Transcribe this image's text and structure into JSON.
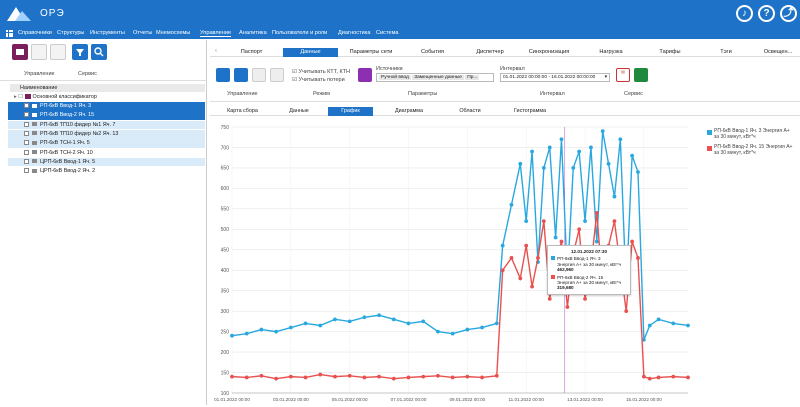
{
  "app": {
    "title": "ОРЭ"
  },
  "menu": [
    "Справочники",
    "Структуры",
    "Инструменты",
    "Отчеты",
    "Мнемосхемы",
    "Управление",
    "Аналитика",
    "Пользователи и роли",
    "Диагностика",
    "Система"
  ],
  "menu_active": 5,
  "left_panel": {
    "group1_label": "Управление",
    "group2_label": "Сервис",
    "tree_header": "Наименование",
    "root": "Основной классификатор",
    "items": [
      {
        "label": "РП-6кВ Ввод-1 Яч. 3",
        "state": "sel"
      },
      {
        "label": "РП-6кВ Ввод-2 Яч. 15",
        "state": "sel"
      },
      {
        "label": "РП-6кВ ТП10 фидер №1 Яч. 7",
        "state": "light"
      },
      {
        "label": "РП-6кВ ТП10 фидер №2 Яч. 13",
        "state": "light"
      },
      {
        "label": "РП-6кВ ТСН-1 Яч. 5",
        "state": "light"
      },
      {
        "label": "РП-6кВ ТСН-2 Яч. 10",
        "state": "none"
      },
      {
        "label": "ЦРП-6кВ Ввод-1 Яч. 5",
        "state": "light"
      },
      {
        "label": "ЦРП-6кВ Ввод-2 Яч. 2",
        "state": "none"
      }
    ]
  },
  "tabs1": [
    "Паспорт",
    "Данные",
    "Параметры сети",
    "События",
    "Диспетчер",
    "Синхронизация",
    "Нагрузка",
    "Тарифы",
    "Тэги",
    "Освещен..."
  ],
  "tabs1_active": 1,
  "ribbon": {
    "mgmt_label": "Управление",
    "mode_label": "Режим",
    "mode_opt1": "Учитывать КТТ, КТН",
    "mode_opt2": "Учитывать потери",
    "params_label": "Параметры",
    "sources_title": "Источники",
    "source_tags": [
      "Ручной ввод",
      "Замещенные данные",
      "Пр..."
    ],
    "interval_title": "Интервал",
    "interval_value": "01.01.2022 00:00:00 - 16.01.2022 00:00:00",
    "interval_label": "Интервал",
    "service_label": "Сервис"
  },
  "tabs2": [
    "Карта сбора",
    "Данные",
    "График",
    "Диаграмма",
    "Области",
    "Гистограмма"
  ],
  "tabs2_active": 2,
  "tooltip": {
    "time": "12.01.2022 07:30",
    "s1_name": "РП-6кВ Ввод-1 Яч. 3",
    "s1_metric": "Энергия А+ за 30 минут, кВт*ч",
    "s1_value": "462,960",
    "s2_name": "РП-6кВ Ввод-2 Яч. 15",
    "s2_metric": "Энергия А+ за 30 минут, кВт*ч",
    "s2_value": "319,680"
  },
  "colors": {
    "accent": "#1e73c8",
    "series1": "#29a8e0",
    "series2": "#e8514f"
  },
  "chart_data": {
    "type": "line",
    "ylim": [
      100,
      750
    ],
    "yticks": [
      100,
      150,
      200,
      250,
      300,
      350,
      400,
      450,
      500,
      550,
      600,
      650,
      700,
      750
    ],
    "xticks": [
      "01.01.2022 00:00",
      "03.01.2022 00:00",
      "05.01.2022 00:00",
      "07.01.2022 00:00",
      "09.01.2022 00:00",
      "11.01.2022 00:00",
      "13.01.2022 00:00",
      "15.01.2022 00:00"
    ],
    "xrange_days": [
      0,
      15.5
    ],
    "series": [
      {
        "name": "РП-6кВ Ввод-1 Яч. 3 Энергия А+ за 30 минут, кВт*ч",
        "color": "#29a8e0",
        "x": [
          0,
          0.5,
          1,
          1.5,
          2,
          2.5,
          3,
          3.5,
          4,
          4.5,
          5,
          5.5,
          6,
          6.5,
          7,
          7.5,
          8,
          8.5,
          9,
          9.2,
          9.5,
          9.8,
          10,
          10.2,
          10.4,
          10.6,
          10.8,
          11,
          11.2,
          11.4,
          11.6,
          11.8,
          12,
          12.2,
          12.4,
          12.6,
          12.8,
          13,
          13.2,
          13.4,
          13.6,
          13.8,
          14,
          14.2,
          14.5,
          15,
          15.5
        ],
        "y": [
          240,
          245,
          255,
          250,
          260,
          270,
          265,
          280,
          275,
          285,
          290,
          280,
          270,
          275,
          250,
          245,
          255,
          260,
          270,
          460,
          560,
          660,
          520,
          690,
          420,
          650,
          700,
          480,
          720,
          380,
          650,
          690,
          520,
          700,
          470,
          740,
          660,
          580,
          720,
          350,
          680,
          640,
          230,
          265,
          280,
          270,
          265
        ]
      },
      {
        "name": "РП-6кВ Ввод-2 Яч. 15 Энергия А+ за 30 минут, кВт*ч",
        "color": "#e8514f",
        "x": [
          0,
          0.5,
          1,
          1.5,
          2,
          2.5,
          3,
          3.5,
          4,
          4.5,
          5,
          5.5,
          6,
          6.5,
          7,
          7.5,
          8,
          8.5,
          9,
          9.2,
          9.5,
          9.8,
          10,
          10.2,
          10.4,
          10.6,
          10.8,
          11,
          11.2,
          11.4,
          11.6,
          11.8,
          12,
          12.2,
          12.4,
          12.6,
          12.8,
          13,
          13.2,
          13.4,
          13.6,
          13.8,
          14,
          14.2,
          14.5,
          15,
          15.5
        ],
        "y": [
          140,
          138,
          142,
          135,
          140,
          138,
          145,
          140,
          142,
          138,
          140,
          135,
          138,
          140,
          142,
          138,
          140,
          138,
          142,
          400,
          430,
          380,
          460,
          360,
          430,
          520,
          330,
          420,
          470,
          310,
          440,
          500,
          330,
          410,
          540,
          360,
          460,
          520,
          410,
          300,
          470,
          430,
          140,
          135,
          138,
          140,
          138
        ]
      }
    ]
  }
}
